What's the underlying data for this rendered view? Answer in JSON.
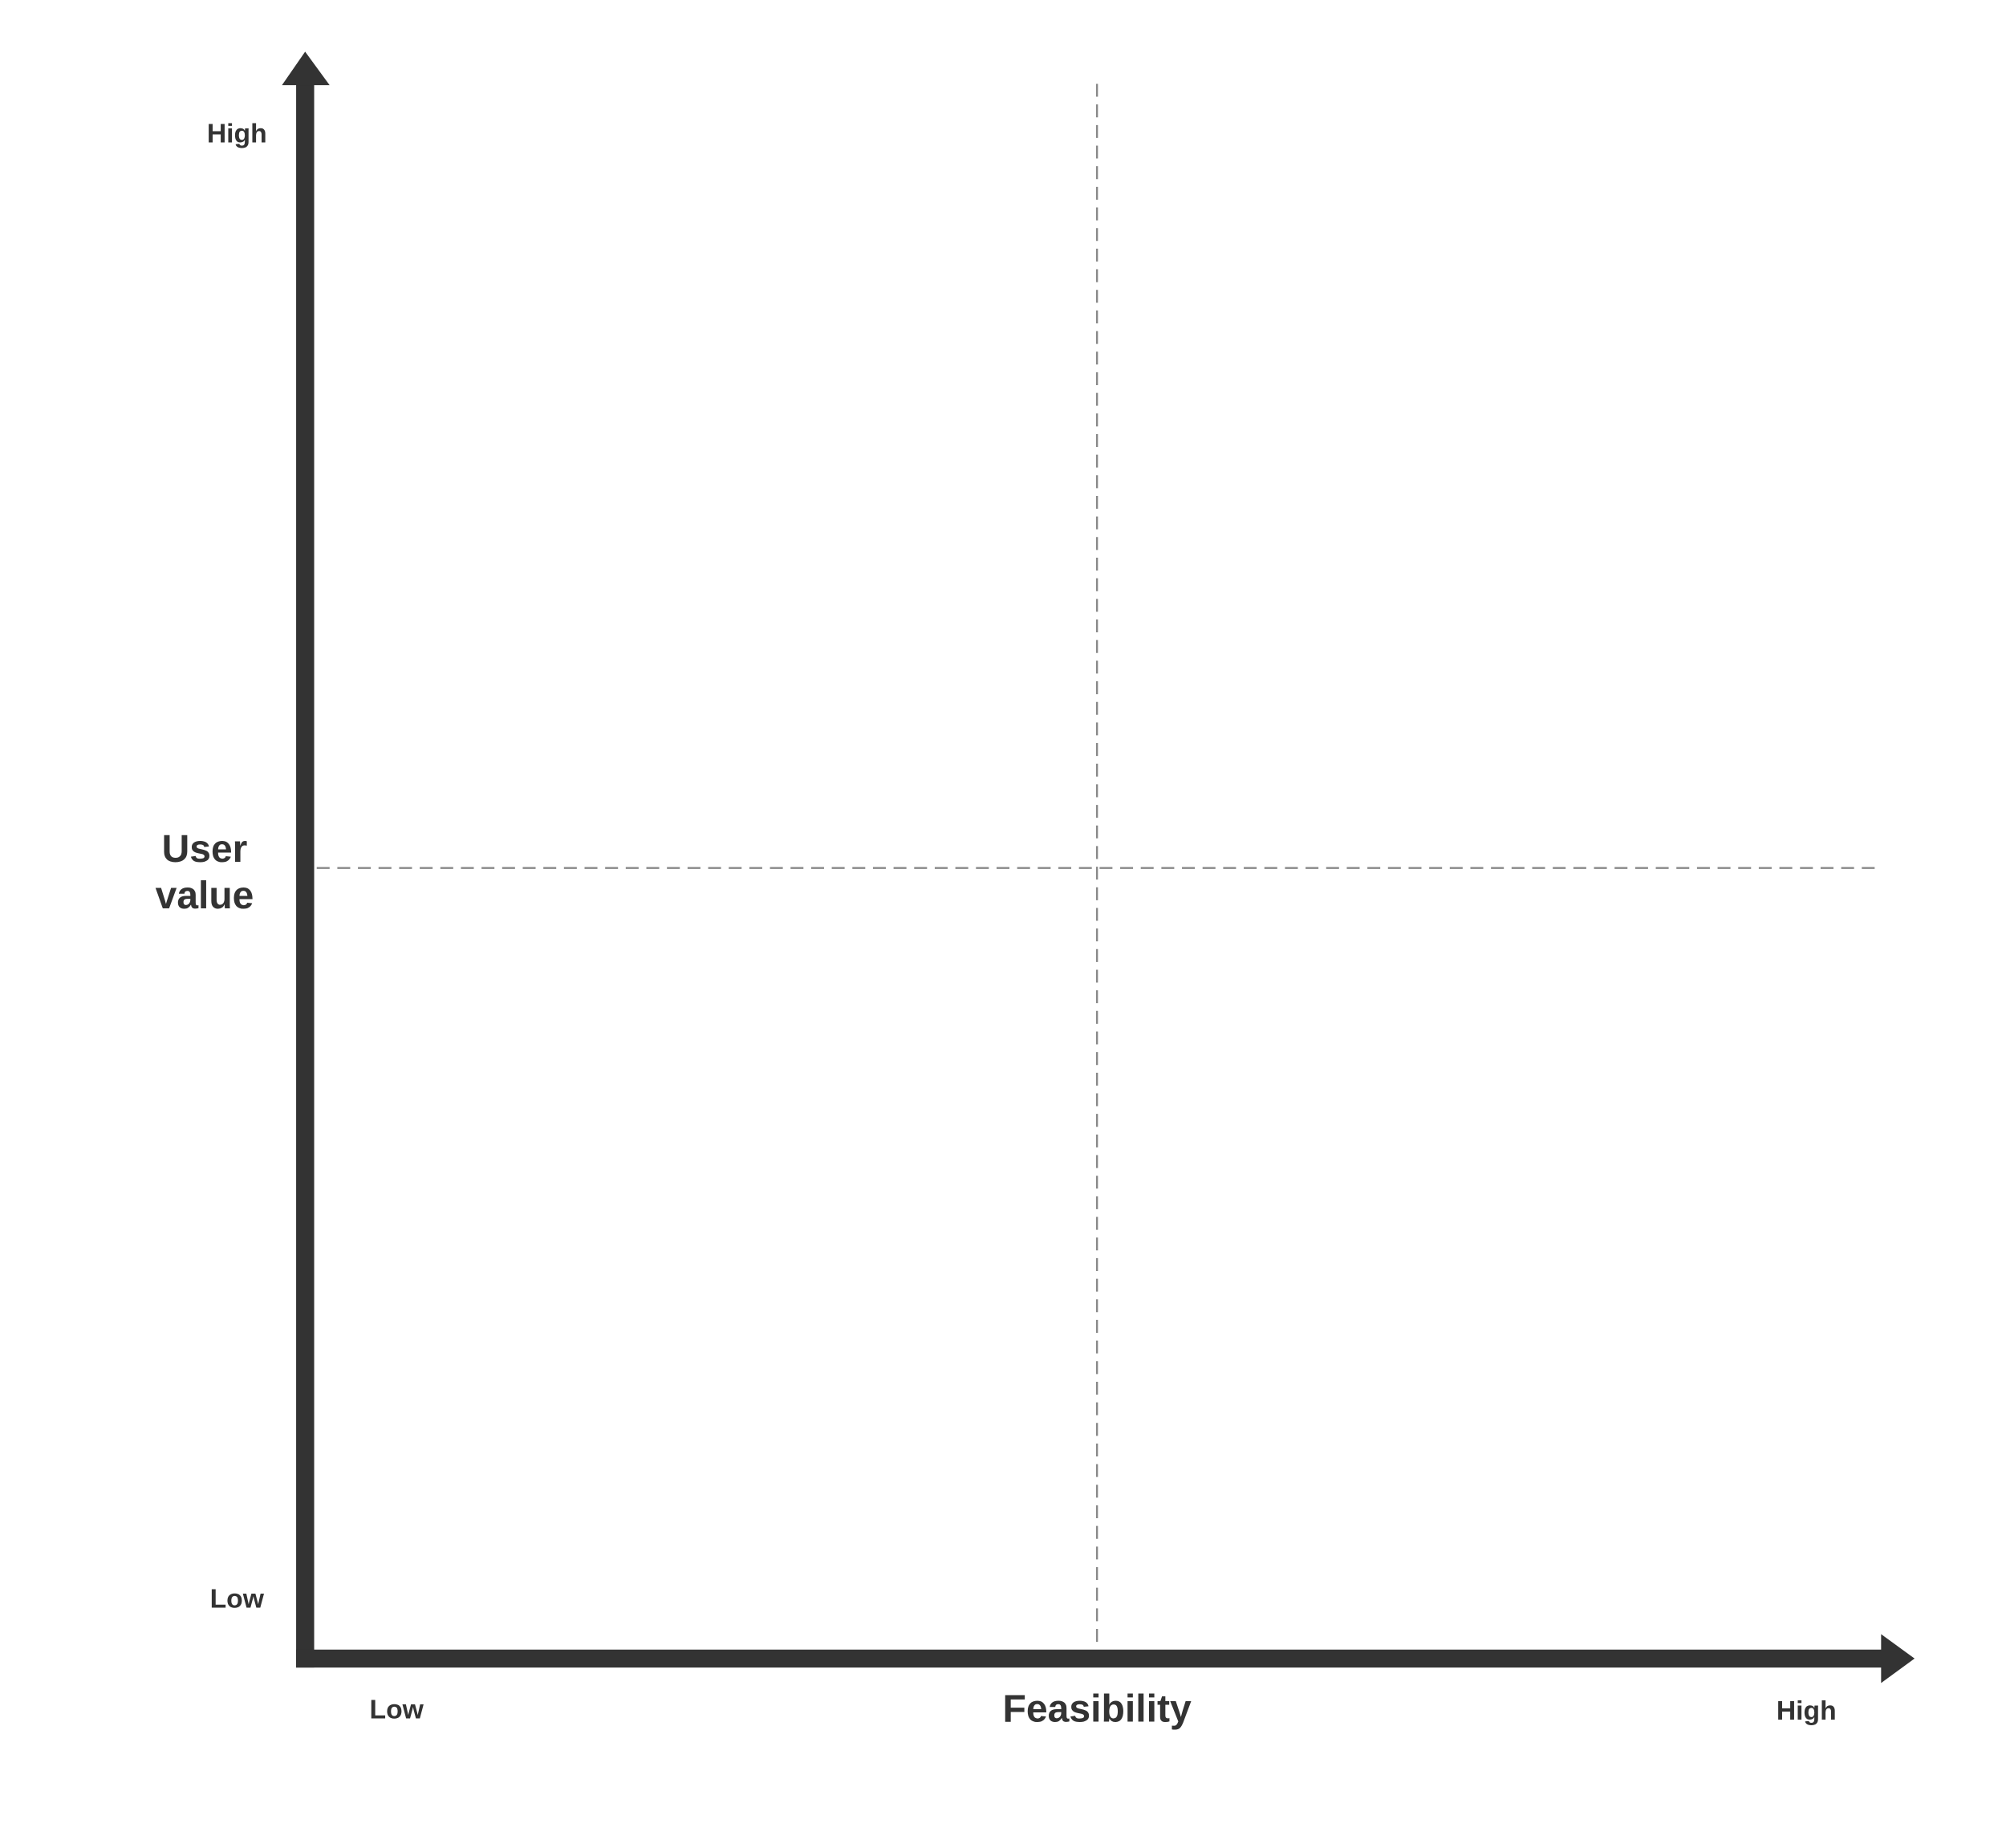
{
  "y_axis": {
    "label": "User value",
    "high": "High",
    "low": "Low"
  },
  "x_axis": {
    "label": "Feasibility",
    "low": "Low",
    "high": "High"
  }
}
